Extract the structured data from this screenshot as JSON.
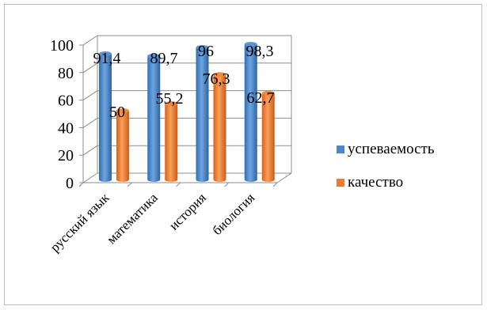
{
  "chart_data": {
    "type": "bar",
    "categories": [
      "русский язык",
      "математика",
      "история",
      "биология"
    ],
    "series": [
      {
        "name": "успеваемость",
        "values": [
          91.4,
          89.7,
          96,
          98.3
        ],
        "labels": [
          "91,4",
          "89,7",
          "96",
          "98,3"
        ],
        "color": "#4a86c8"
      },
      {
        "name": "качество",
        "values": [
          50,
          55.2,
          76.3,
          62.7
        ],
        "labels": [
          "50",
          "55,2",
          "76,3",
          "62,7"
        ],
        "color": "#ee7a2d"
      }
    ],
    "y_ticks": [
      "0",
      "20",
      "40",
      "60",
      "80",
      "100"
    ],
    "ylim": [
      0,
      100
    ],
    "grid": true,
    "legend_position": "right"
  }
}
